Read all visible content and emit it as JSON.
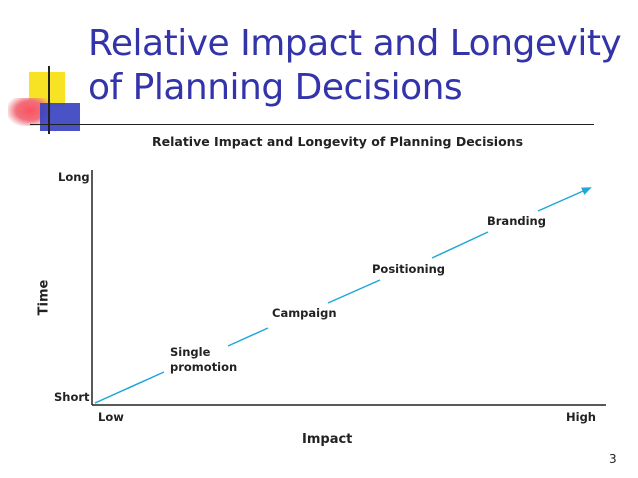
{
  "slide": {
    "title_line1": "Relative Impact and Longevity",
    "title_line2": "of Planning Decisions",
    "page_number": "3"
  },
  "diagram": {
    "title": "Relative Impact and Longevity of Planning Decisions",
    "y_axis": {
      "title": "Time",
      "top_label": "Long",
      "bottom_label": "Short"
    },
    "x_axis": {
      "title": "Impact",
      "left_label": "Low",
      "right_label": "High"
    },
    "stages": [
      "Single promotion",
      "Campaign",
      "Positioning",
      "Branding"
    ],
    "stage_line1": {
      "single": "Single",
      "single_2": "promotion"
    },
    "arrow_color": "#1fa7d8"
  }
}
